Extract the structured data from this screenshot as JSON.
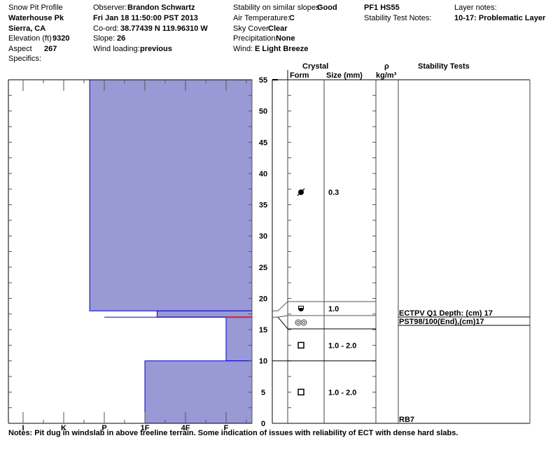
{
  "header": {
    "title": "Snow Pit Profile",
    "location": "Waterhouse Pk",
    "region": "Sierra, CA",
    "elevation_label": "Elevation (ft)",
    "elevation": "9320",
    "aspect_label": "Aspect",
    "aspect": "267",
    "specifics_label": "Specifics:",
    "observer_label": "Observer:",
    "observer": "Brandon Schwartz",
    "datetime": "Fri Jan 18 11:50:00 PST 2013",
    "coord_label": "Co-ord:",
    "coord": "38.77439 N 119.96310 W",
    "slope_label": "Slope:",
    "slope": "26",
    "wind_loading_label": "Wind loading:",
    "wind_loading": "previous",
    "stability_label": "Stability on similar slopes:",
    "stability": "Good",
    "air_temp_label": "Air Temperature:",
    "air_temp": "C",
    "sky_label": "Sky Cover:",
    "sky": "Clear",
    "precip_label": "Precipitation:",
    "precip": "None",
    "wind_label": "Wind:",
    "wind": "E Light Breeze",
    "pit_id": "PF1 HS55",
    "stability_notes_label": "Stability Test Notes:",
    "layer_notes_label": "Layer notes:",
    "layer_notes": "10-17: Problematic Layer"
  },
  "columns": {
    "crystal": "Crystal",
    "form": "Form",
    "size": "Size (mm)",
    "density_symbol": "ρ",
    "density_unit": "kg/m³",
    "stability_tests": "Stability Tests"
  },
  "notes": "Notes:  Pit dug in windslab in above treeline terrain. Some indication of issues with reliability of ECT with dense hard slabs.",
  "chart_data": {
    "type": "bar",
    "orientation": "horizontal-step-profile",
    "ylabel": "",
    "ylim": [
      0,
      55
    ],
    "yticks": [
      "0",
      "5",
      "10",
      "15",
      "20",
      "25",
      "30",
      "35",
      "40",
      "45",
      "50",
      "55"
    ],
    "xticks": [
      "I",
      "K",
      "P",
      "1F",
      "4F",
      "F"
    ],
    "fill_color": "#9999d6",
    "edge_color": "#0000cc",
    "problem_layer_color": "#d02040",
    "layers": [
      {
        "top": 55,
        "bottom": 18,
        "hardness": "P-",
        "hardness_index": 1.64
      },
      {
        "top": 18,
        "bottom": 17,
        "hardness": "1F+",
        "hardness_index": 3.3
      },
      {
        "top": 17,
        "bottom": 17,
        "hardness": "P",
        "hardness_index": 2
      },
      {
        "top": 17,
        "bottom": 10,
        "hardness": "F",
        "hardness_index": 5
      },
      {
        "top": 10,
        "bottom": 0,
        "hardness": "1F",
        "hardness_index": 3
      }
    ],
    "problem_layer_depth": 17,
    "crystals": [
      {
        "top": 55,
        "bottom": 18,
        "symbol_depth": 37,
        "form": "decomposing-fragments",
        "size": "0.3"
      },
      {
        "top": 18,
        "bottom": 17,
        "form": "rounded-faceted",
        "size": "1.0"
      },
      {
        "top": 17,
        "bottom": 15,
        "form": "melt-freeze-clusters",
        "size": ""
      },
      {
        "top": 15,
        "bottom": 10,
        "form": "faceted",
        "size": "1.0 - 2.0"
      },
      {
        "top": 10,
        "bottom": 0,
        "form": "faceted",
        "size": "1.0 - 2.0"
      }
    ],
    "stability_tests": [
      {
        "depth": 17,
        "label": "ECTPV Q1 Depth: (cm) 17"
      },
      {
        "depth": 17,
        "label": "PST98/100(End),(cm)17"
      },
      {
        "depth": 0,
        "label": "RB7"
      }
    ]
  }
}
